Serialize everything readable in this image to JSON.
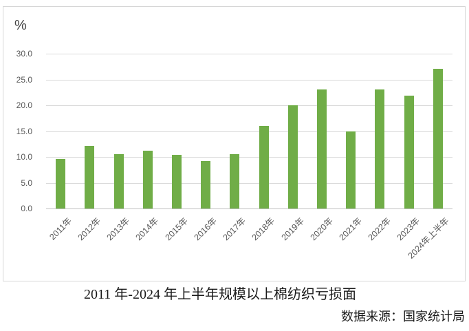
{
  "chart": {
    "unit_label": "%",
    "caption": "2011 年-2024 年上半年规模以上棉纺织亏损面",
    "source": "数据来源：国家统计局"
  },
  "chart_data": {
    "type": "bar",
    "title": "2011 年-2024 年上半年规模以上棉纺织亏损面",
    "xlabel": "",
    "ylabel": "%",
    "categories": [
      "2011年",
      "2012年",
      "2013年",
      "2014年",
      "2015年",
      "2016年",
      "2017年",
      "2018年",
      "2019年",
      "2020年",
      "2021年",
      "2022年",
      "2023年",
      "2024年上半年"
    ],
    "values": [
      9.6,
      12.2,
      10.6,
      11.2,
      10.4,
      9.2,
      10.6,
      16.0,
      20.0,
      23.1,
      15.0,
      23.1,
      21.9,
      27.1
    ],
    "ylim": [
      0,
      30
    ],
    "ytick_step": 5,
    "ytick_labels": [
      "0.0",
      "5.0",
      "10.0",
      "15.0",
      "20.0",
      "25.0",
      "30.0"
    ],
    "grid": true,
    "legend": "none",
    "source_note": "数据来源：国家统计局",
    "bar_color": "#70AD47",
    "gridline_color": "#D9D9D9",
    "axis_line_color": "#BFBFBF",
    "tick_label_color": "#595959",
    "frame_border_color": "#D6D6D6"
  }
}
